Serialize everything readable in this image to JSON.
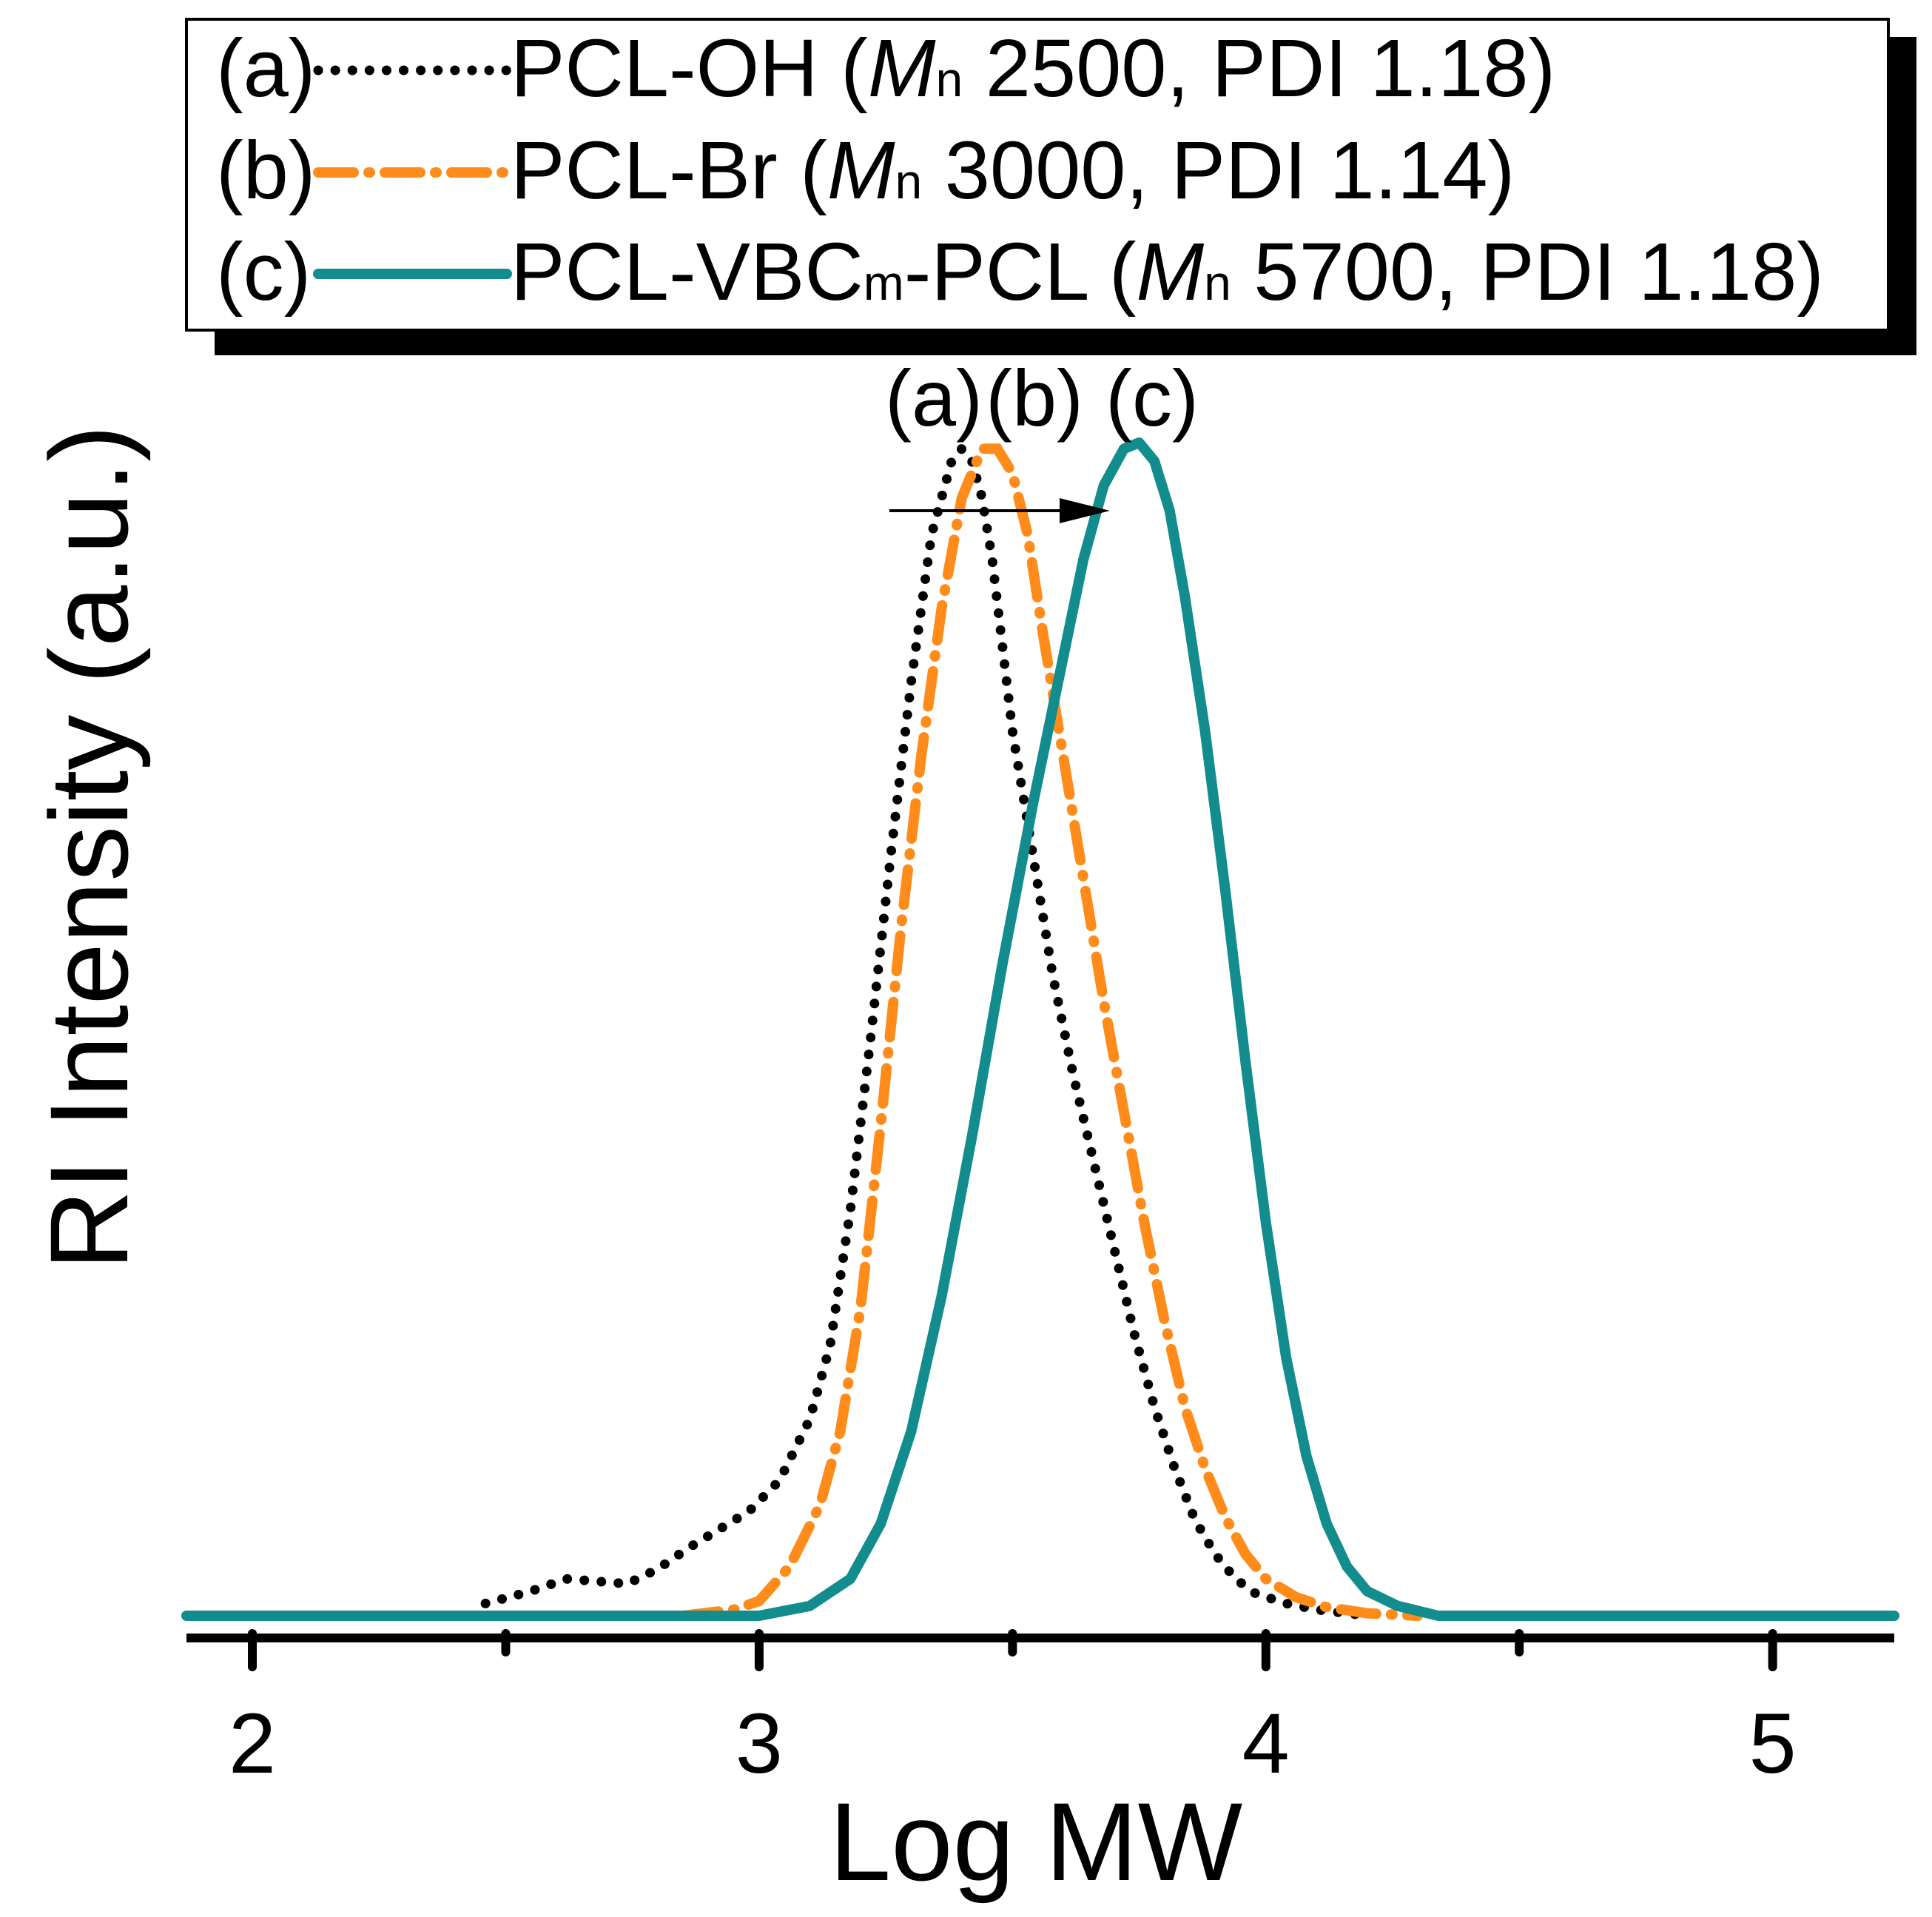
{
  "chart_data": {
    "type": "line",
    "title": "",
    "xlabel": "Log MW",
    "ylabel": "RI Intensity (a.u.)",
    "xlim": [
      1.87,
      5.24
    ],
    "ylim": [
      0,
      1.0
    ],
    "xticks": [
      2,
      3,
      4,
      5
    ],
    "xtick_labels": [
      "2",
      "3",
      "4",
      "5"
    ],
    "minor_xticks": [
      2.5,
      3.5,
      4.5
    ],
    "grid": false,
    "legend_position": "top",
    "series": [
      {
        "name": "PCL-OH",
        "legend_prefix": "(a)",
        "legend_main": "PCL-OH (",
        "legend_mn": "Mn",
        "legend_rest": " 2500, PDI 1.18)",
        "style": "dotted",
        "color": "#000000",
        "peak_label": "(a)",
        "x": [
          2.46,
          2.55,
          2.62,
          2.68,
          2.74,
          2.8,
          2.86,
          2.92,
          2.98,
          3.04,
          3.1,
          3.14,
          3.18,
          3.22,
          3.26,
          3.3,
          3.34,
          3.38,
          3.4,
          3.42,
          3.44,
          3.46,
          3.48,
          3.5,
          3.54,
          3.58,
          3.62,
          3.66,
          3.7,
          3.74,
          3.78,
          3.82,
          3.86,
          3.9,
          3.94,
          3.98,
          4.04,
          4.1,
          4.2
        ],
        "y": [
          0.01,
          0.02,
          0.03,
          0.028,
          0.026,
          0.038,
          0.055,
          0.07,
          0.085,
          0.11,
          0.16,
          0.22,
          0.33,
          0.47,
          0.62,
          0.76,
          0.88,
          0.94,
          0.95,
          0.94,
          0.91,
          0.86,
          0.79,
          0.72,
          0.62,
          0.52,
          0.44,
          0.37,
          0.3,
          0.23,
          0.17,
          0.12,
          0.078,
          0.05,
          0.03,
          0.018,
          0.01,
          0.005,
          0.0
        ]
      },
      {
        "name": "PCL-Br",
        "legend_prefix": "(b)",
        "legend_main": "PCL-Br (",
        "legend_mn": "Mn",
        "legend_rest": " 3000, PDI 1.14)",
        "style": "dash-dot",
        "color": "#FF8C1A",
        "peak_label": "(b)",
        "x": [
          2.85,
          2.95,
          3.0,
          3.06,
          3.12,
          3.16,
          3.2,
          3.24,
          3.28,
          3.32,
          3.36,
          3.4,
          3.44,
          3.47,
          3.5,
          3.53,
          3.56,
          3.6,
          3.64,
          3.68,
          3.72,
          3.76,
          3.8,
          3.84,
          3.88,
          3.92,
          3.96,
          4.0,
          4.06,
          4.12,
          4.2,
          4.3
        ],
        "y": [
          0.0,
          0.005,
          0.012,
          0.04,
          0.09,
          0.15,
          0.25,
          0.4,
          0.56,
          0.7,
          0.82,
          0.91,
          0.95,
          0.95,
          0.93,
          0.88,
          0.8,
          0.7,
          0.6,
          0.5,
          0.41,
          0.32,
          0.24,
          0.17,
          0.12,
          0.08,
          0.05,
          0.03,
          0.015,
          0.007,
          0.002,
          0.0
        ]
      },
      {
        "name": "PCL-VBCm-PCL",
        "legend_prefix": "(c)",
        "legend_main": "PCL-VBC",
        "legend_sub": "m",
        "legend_after_sub": "-PCL (",
        "legend_mn": "Mn",
        "legend_rest": " 5700, PDI 1.18)",
        "style": "solid",
        "color": "#128C8C",
        "peak_label": "(c)",
        "x": [
          1.87,
          3.0,
          3.1,
          3.18,
          3.24,
          3.3,
          3.36,
          3.42,
          3.48,
          3.54,
          3.6,
          3.64,
          3.68,
          3.72,
          3.75,
          3.78,
          3.81,
          3.84,
          3.88,
          3.92,
          3.96,
          4.0,
          4.04,
          4.08,
          4.12,
          4.16,
          4.2,
          4.26,
          4.34,
          5.24
        ],
        "y": [
          0.0,
          0.0,
          0.008,
          0.03,
          0.075,
          0.15,
          0.26,
          0.39,
          0.53,
          0.66,
          0.78,
          0.86,
          0.92,
          0.95,
          0.955,
          0.94,
          0.9,
          0.83,
          0.72,
          0.59,
          0.45,
          0.32,
          0.21,
          0.13,
          0.075,
          0.04,
          0.02,
          0.008,
          0.0,
          0.0
        ]
      }
    ]
  }
}
